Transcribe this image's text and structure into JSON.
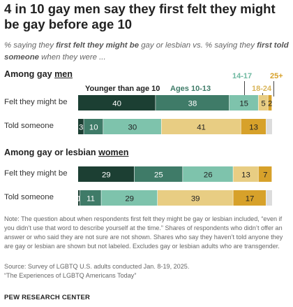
{
  "title": "4 in 10 gay men say they first felt they might be gay before age 10",
  "subtitle": {
    "p1": "% saying they ",
    "b1": "first felt they might be",
    "p2": " gay or lesbian vs. % saying they ",
    "b2": "first told someone",
    "p3": " when they were ..."
  },
  "sections": [
    {
      "pre": "Among gay ",
      "u": "men"
    },
    {
      "pre": "Among gay or lesbian ",
      "u": "women"
    }
  ],
  "colors": {
    "under10": "#1c3f33",
    "age10_13": "#3f7b68",
    "age14_17": "#7ec3ac",
    "age18_24": "#e8cd83",
    "age25plus": "#d7a12a",
    "unlabeled": "#dcdcdc"
  },
  "chart_data": {
    "type": "stacked bar",
    "categories": [
      "Younger than age 10",
      "Ages 10-13",
      "14-17",
      "18-24",
      "25+"
    ],
    "groups": [
      {
        "name": "Among gay men",
        "rows": [
          {
            "label": "Felt they might be",
            "values": [
              40,
              38,
              15,
              5,
              2
            ]
          },
          {
            "label": "Told someone",
            "values": [
              3,
              10,
              30,
              41,
              13
            ]
          }
        ]
      },
      {
        "name": "Among gay or lesbian women",
        "rows": [
          {
            "label": "Felt they might be",
            "values": [
              29,
              25,
              26,
              13,
              7
            ]
          },
          {
            "label": "Told someone",
            "values": [
              1,
              11,
              29,
              39,
              17
            ]
          }
        ]
      }
    ],
    "xlim": [
      0,
      100
    ]
  },
  "note": "Note: The question about when respondents first felt they might be gay or lesbian included, “even if you didn’t use that word to describe yourself at the time.” Shares of respondents who didn’t offer an answer or who said they are not sure are not shown. Shares who say they haven’t told anyone they are gay or lesbian are shown but not labeled. Excludes gay or lesbian adults who are transgender.",
  "source": "Source: Survey of LGBTQ U.S. adults conducted Jan. 8-19, 2025.",
  "report": "“The Experiences of LGBTQ Americans Today”",
  "logo": "PEW RESEARCH CENTER"
}
